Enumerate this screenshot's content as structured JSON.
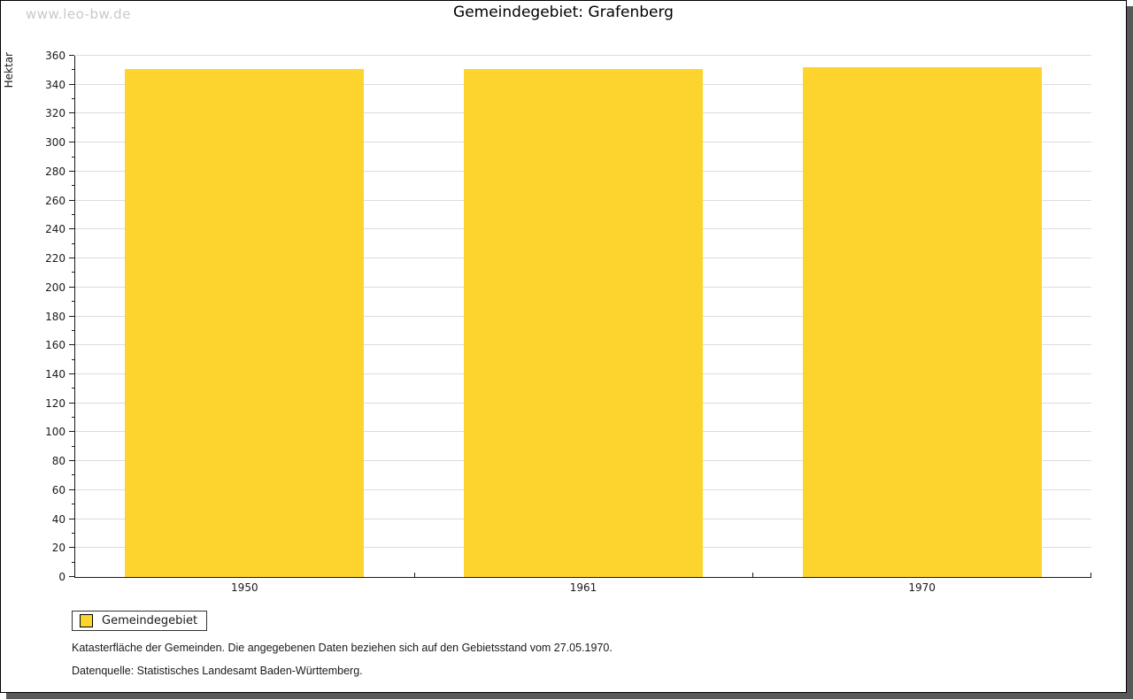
{
  "watermark": "www.leo-bw.de",
  "header": {
    "title": "Gemeindegebiet: Grafenberg"
  },
  "legend": {
    "label": "Gemeindegebiet"
  },
  "footer": {
    "line1": "Katasterfläche der Gemeinden. Die angegebenen Daten beziehen sich auf den Gebietsstand vom 27.05.1970.",
    "line2": "Datenquelle: Statistisches Landesamt Baden-Württemberg."
  },
  "colors": {
    "bar": "#fdd42d",
    "gridline": "#dcdcdc",
    "axis": "#1a1a1a",
    "watermark": "#c9c9c9",
    "shadow": "#595959"
  },
  "chart_data": {
    "type": "bar",
    "title": "Gemeindegebiet: Grafenberg",
    "categories": [
      "1950",
      "1961",
      "1970"
    ],
    "series": [
      {
        "name": "Gemeindegebiet",
        "values": [
          351,
          351,
          352
        ],
        "color": "#fdd42d"
      }
    ],
    "xlabel": "",
    "ylabel": "Hektar",
    "ylim": [
      0,
      360
    ],
    "yticks": [
      0,
      20,
      40,
      60,
      80,
      100,
      120,
      140,
      160,
      180,
      200,
      220,
      240,
      260,
      280,
      300,
      320,
      340,
      360
    ],
    "minor_tick_step": 10,
    "grid": true,
    "legend_position": "bottom-left",
    "bar_width_fraction": 0.705
  }
}
